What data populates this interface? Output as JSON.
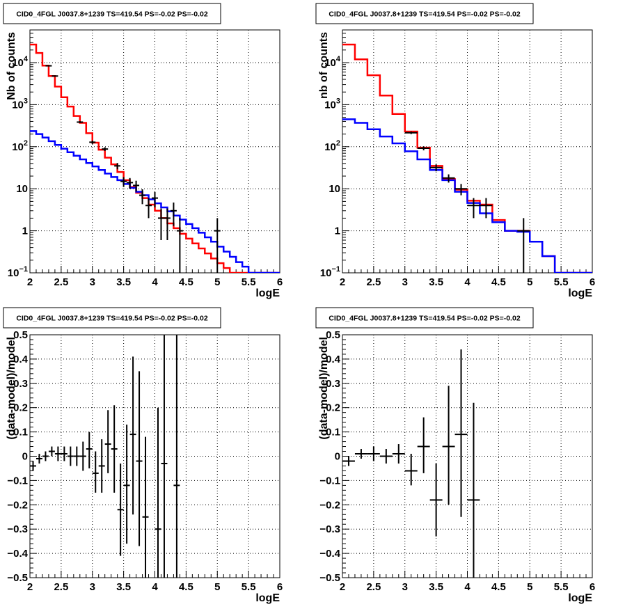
{
  "chart_data": [
    {
      "id": "tl",
      "type": "histogram",
      "title": "CID0_4FGL J0037.8+1239 TS=419.54 PS=-0.02 PS=-0.02",
      "xlabel": "logE",
      "ylabel": "Nb of counts",
      "xlim": [
        2,
        6
      ],
      "ylim": [
        0.1,
        60000
      ],
      "yscale": "log",
      "grid": true,
      "xticks": [
        "2",
        "2.5",
        "3",
        "3.5",
        "4",
        "4.5",
        "5",
        "5.5",
        "6"
      ],
      "yticks": [
        {
          "v": 0.1,
          "base": "10",
          "exp": "−1"
        },
        {
          "v": 1,
          "text": "1"
        },
        {
          "v": 10,
          "text": "10"
        },
        {
          "v": 100,
          "base": "10",
          "exp": "2"
        },
        {
          "v": 1000,
          "base": "10",
          "exp": "3"
        },
        {
          "v": 10000,
          "base": "10",
          "exp": "4"
        }
      ],
      "bin_edges": [
        2.0,
        2.1,
        2.2,
        2.3,
        2.4,
        2.5,
        2.6,
        2.7,
        2.8,
        2.9,
        3.0,
        3.1,
        3.2,
        3.3,
        3.4,
        3.5,
        3.6,
        3.7,
        3.8,
        3.9,
        4.0,
        4.1,
        4.2,
        4.3,
        4.4,
        4.5,
        4.6,
        4.7,
        4.8,
        4.9,
        5.0,
        5.1,
        5.2,
        5.3,
        5.4,
        5.5,
        5.6,
        5.7,
        5.8,
        5.9,
        6.0
      ],
      "series": [
        {
          "color": "#ff0000",
          "values": [
            27000,
            17000,
            8500,
            4800,
            2700,
            1500,
            900,
            540,
            370,
            210,
            125,
            85,
            55,
            38,
            25,
            16,
            11,
            8,
            6,
            4.2,
            3.0,
            2.0,
            1.5,
            1.15,
            0.85,
            0.65,
            0.5,
            0.38,
            0.29,
            0.22,
            0.17,
            0.13,
            0.1,
            0.1,
            0.1,
            0.1,
            0.1,
            0.1,
            0.1,
            0.1
          ]
        },
        {
          "color": "#0000ff",
          "values": [
            235,
            200,
            165,
            135,
            110,
            90,
            74,
            61,
            50,
            41,
            34,
            28,
            23,
            19,
            16,
            13,
            10.5,
            8.5,
            7,
            5.6,
            4.5,
            3.6,
            2.9,
            2.3,
            1.85,
            1.45,
            1.15,
            0.9,
            0.7,
            0.55,
            0.42,
            0.32,
            0.24,
            0.18,
            0.14,
            0.1,
            0.1,
            0.1,
            0.1,
            0.1
          ]
        }
      ],
      "points": [
        {
          "x": 2.3,
          "y": 8400,
          "ylo": 8200,
          "yhi": 8600,
          "dx": 0.05
        },
        {
          "x": 2.4,
          "y": 4800,
          "ylo": 4650,
          "yhi": 4950,
          "dx": 0.05
        },
        {
          "x": 2.8,
          "y": 385,
          "ylo": 365,
          "yhi": 405,
          "dx": 0.05
        },
        {
          "x": 3.0,
          "y": 128,
          "ylo": 116,
          "yhi": 140,
          "dx": 0.05
        },
        {
          "x": 3.2,
          "y": 88,
          "ylo": 79,
          "yhi": 97,
          "dx": 0.05
        },
        {
          "x": 3.4,
          "y": 35,
          "ylo": 29,
          "yhi": 41,
          "dx": 0.05
        },
        {
          "x": 3.5,
          "y": 15,
          "ylo": 11,
          "yhi": 19,
          "dx": 0.05
        },
        {
          "x": 3.6,
          "y": 14,
          "ylo": 10,
          "yhi": 18,
          "dx": 0.05
        },
        {
          "x": 3.7,
          "y": 12,
          "ylo": 8.5,
          "yhi": 15.5,
          "dx": 0.05
        },
        {
          "x": 3.8,
          "y": 7,
          "ylo": 4.3,
          "yhi": 9.7,
          "dx": 0.05
        },
        {
          "x": 3.9,
          "y": 4,
          "ylo": 2,
          "yhi": 6,
          "dx": 0.05
        },
        {
          "x": 4.0,
          "y": 6,
          "ylo": 3.6,
          "yhi": 8.4,
          "dx": 0.05
        },
        {
          "x": 4.1,
          "y": 2,
          "ylo": 0.6,
          "yhi": 3.4,
          "dx": 0.05
        },
        {
          "x": 4.2,
          "y": 2,
          "ylo": 0.6,
          "yhi": 3.4,
          "dx": 0.05
        },
        {
          "x": 4.3,
          "y": 3,
          "ylo": 1.3,
          "yhi": 4.7,
          "dx": 0.05
        },
        {
          "x": 4.4,
          "y": 1,
          "ylo": 0.1,
          "yhi": 2,
          "dx": 0.05
        },
        {
          "x": 5.0,
          "y": 1,
          "ylo": 0.1,
          "yhi": 2,
          "dx": 0.05
        }
      ]
    },
    {
      "id": "tr",
      "type": "histogram",
      "title": "CID0_4FGL J0037.8+1239 TS=419.54 PS=-0.02 PS=-0.02",
      "xlabel": "logE",
      "ylabel": "nb of counts",
      "xlim": [
        2,
        6
      ],
      "ylim": [
        0.1,
        60000
      ],
      "yscale": "log",
      "grid": true,
      "xticks": [
        "2",
        "2.5",
        "3",
        "3.5",
        "4",
        "4.5",
        "5",
        "5.5",
        "6"
      ],
      "yticks": [
        {
          "v": 0.1,
          "base": "10",
          "exp": "−1"
        },
        {
          "v": 1,
          "text": "1"
        },
        {
          "v": 10,
          "text": "10"
        },
        {
          "v": 100,
          "base": "10",
          "exp": "2"
        },
        {
          "v": 1000,
          "base": "10",
          "exp": "3"
        },
        {
          "v": 10000,
          "base": "10",
          "exp": "4"
        }
      ],
      "bin_edges": [
        2.0,
        2.2,
        2.4,
        2.6,
        2.8,
        3.0,
        3.2,
        3.4,
        3.6,
        3.8,
        4.0,
        4.2,
        4.4,
        4.6,
        4.8,
        5.0,
        5.2,
        5.4,
        5.6,
        5.8,
        6.0
      ],
      "series": [
        {
          "color": "#ff0000",
          "values": [
            27000,
            12000,
            5000,
            1650,
            600,
            230,
            95,
            35,
            17,
            9.5,
            5.2,
            4.2,
            1.8,
            1.0,
            1.0,
            0.55,
            0.25,
            0.1,
            0.1,
            0.1
          ]
        },
        {
          "color": "#0000ff",
          "values": [
            450,
            370,
            260,
            175,
            120,
            78,
            50,
            28,
            16,
            8.5,
            4.6,
            2.6,
            1.6,
            1.0,
            0.95,
            0.55,
            0.25,
            0.1,
            0.1,
            0.1
          ]
        }
      ],
      "points": [
        {
          "x": 3.1,
          "y": 215,
          "ylo": 200,
          "yhi": 230,
          "dx": 0.1
        },
        {
          "x": 3.3,
          "y": 92,
          "ylo": 82,
          "yhi": 102,
          "dx": 0.1
        },
        {
          "x": 3.5,
          "y": 32,
          "ylo": 26,
          "yhi": 38,
          "dx": 0.1
        },
        {
          "x": 3.7,
          "y": 18,
          "ylo": 14,
          "yhi": 22,
          "dx": 0.1
        },
        {
          "x": 3.9,
          "y": 10,
          "ylo": 7,
          "yhi": 13,
          "dx": 0.1
        },
        {
          "x": 4.1,
          "y": 4,
          "ylo": 2,
          "yhi": 6,
          "dx": 0.1
        },
        {
          "x": 4.3,
          "y": 4,
          "ylo": 2,
          "yhi": 6,
          "dx": 0.1
        },
        {
          "x": 4.9,
          "y": 1,
          "ylo": 0.1,
          "yhi": 2,
          "dx": 0.1
        }
      ]
    },
    {
      "id": "bl",
      "type": "scatter",
      "title": "CID0_4FGL J0037.8+1239 TS=419.54 PS=-0.02 PS=-0.02",
      "xlabel": "logE",
      "ylabel": "(data-model)/model",
      "xlim": [
        2,
        6
      ],
      "ylim": [
        -0.5,
        0.5
      ],
      "yscale": "linear",
      "grid": true,
      "xticks": [
        "2",
        "2.5",
        "3",
        "3.5",
        "4",
        "4.5",
        "5",
        "5.5",
        "6"
      ],
      "yticks": [
        {
          "v": -0.5,
          "text": "−0.5"
        },
        {
          "v": -0.4,
          "text": "−0.4"
        },
        {
          "v": -0.3,
          "text": "−0.3"
        },
        {
          "v": -0.2,
          "text": "−0.2"
        },
        {
          "v": -0.1,
          "text": "−0.1"
        },
        {
          "v": 0,
          "text": "0"
        },
        {
          "v": 0.1,
          "text": "0.1"
        },
        {
          "v": 0.2,
          "text": "0.2"
        },
        {
          "v": 0.3,
          "text": "0.3"
        },
        {
          "v": 0.4,
          "text": "0.4"
        },
        {
          "v": 0.5,
          "text": "0.5"
        }
      ],
      "points": [
        {
          "x": 2.05,
          "y": -0.04,
          "ylo": -0.06,
          "yhi": -0.02,
          "dx": 0.05
        },
        {
          "x": 2.15,
          "y": -0.01,
          "ylo": -0.03,
          "yhi": 0.01,
          "dx": 0.05
        },
        {
          "x": 2.25,
          "y": 0.0,
          "ylo": -0.02,
          "yhi": 0.02,
          "dx": 0.05
        },
        {
          "x": 2.35,
          "y": 0.02,
          "ylo": 0.0,
          "yhi": 0.04,
          "dx": 0.05
        },
        {
          "x": 2.45,
          "y": 0.01,
          "ylo": -0.02,
          "yhi": 0.04,
          "dx": 0.05
        },
        {
          "x": 2.55,
          "y": 0.01,
          "ylo": -0.02,
          "yhi": 0.04,
          "dx": 0.05
        },
        {
          "x": 2.65,
          "y": 0.0,
          "ylo": -0.04,
          "yhi": 0.04,
          "dx": 0.05
        },
        {
          "x": 2.75,
          "y": 0.0,
          "ylo": -0.04,
          "yhi": 0.04,
          "dx": 0.05
        },
        {
          "x": 2.85,
          "y": 0.0,
          "ylo": -0.06,
          "yhi": 0.06,
          "dx": 0.05
        },
        {
          "x": 2.95,
          "y": 0.03,
          "ylo": -0.05,
          "yhi": 0.1,
          "dx": 0.05
        },
        {
          "x": 3.05,
          "y": -0.07,
          "ylo": -0.15,
          "yhi": 0.02,
          "dx": 0.05
        },
        {
          "x": 3.15,
          "y": -0.04,
          "ylo": -0.15,
          "yhi": 0.07,
          "dx": 0.05
        },
        {
          "x": 3.25,
          "y": 0.05,
          "ylo": -0.07,
          "yhi": 0.19,
          "dx": 0.05
        },
        {
          "x": 3.35,
          "y": 0.03,
          "ylo": -0.15,
          "yhi": 0.21,
          "dx": 0.05
        },
        {
          "x": 3.45,
          "y": -0.22,
          "ylo": -0.41,
          "yhi": -0.03,
          "dx": 0.05
        },
        {
          "x": 3.55,
          "y": -0.12,
          "ylo": -0.36,
          "yhi": 0.13,
          "dx": 0.05
        },
        {
          "x": 3.65,
          "y": 0.09,
          "ylo": -0.24,
          "yhi": 0.41,
          "dx": 0.05
        },
        {
          "x": 3.75,
          "y": -0.02,
          "ylo": -0.37,
          "yhi": 0.35,
          "dx": 0.05
        },
        {
          "x": 3.85,
          "y": -0.25,
          "ylo": -0.5,
          "yhi": 0.08,
          "dx": 0.05
        },
        {
          "x": 4.05,
          "y": -0.3,
          "ylo": -0.5,
          "yhi": 0.2,
          "dx": 0.05
        },
        {
          "x": 4.15,
          "y": -0.03,
          "ylo": -0.5,
          "yhi": 0.5,
          "dx": 0.05
        },
        {
          "x": 4.35,
          "y": -0.12,
          "ylo": -0.5,
          "yhi": 0.5,
          "dx": 0.05
        }
      ]
    },
    {
      "id": "br",
      "type": "scatter",
      "title": "CID0_4FGL J0037.8+1239 TS=419.54 PS=-0.02 PS=-0.02",
      "xlabel": "logE",
      "ylabel": "(data-model)/model",
      "xlim": [
        2,
        6
      ],
      "ylim": [
        -0.5,
        0.5
      ],
      "yscale": "linear",
      "grid": true,
      "xticks": [
        "2",
        "2.5",
        "3",
        "3.5",
        "4",
        "4.5",
        "5",
        "5.5",
        "6"
      ],
      "yticks": [
        {
          "v": -0.5,
          "text": "−0.5"
        },
        {
          "v": -0.4,
          "text": "−0.4"
        },
        {
          "v": -0.3,
          "text": "−0.3"
        },
        {
          "v": -0.2,
          "text": "−0.2"
        },
        {
          "v": -0.1,
          "text": "−0.1"
        },
        {
          "v": 0,
          "text": "0"
        },
        {
          "v": 0.1,
          "text": "0.1"
        },
        {
          "v": 0.2,
          "text": "0.2"
        },
        {
          "v": 0.3,
          "text": "0.3"
        },
        {
          "v": 0.4,
          "text": "0.4"
        },
        {
          "v": 0.5,
          "text": "0.5"
        }
      ],
      "points": [
        {
          "x": 2.1,
          "y": -0.02,
          "ylo": -0.04,
          "yhi": 0.0,
          "dx": 0.1
        },
        {
          "x": 2.3,
          "y": 0.01,
          "ylo": -0.01,
          "yhi": 0.03,
          "dx": 0.1
        },
        {
          "x": 2.5,
          "y": 0.01,
          "ylo": -0.02,
          "yhi": 0.04,
          "dx": 0.1
        },
        {
          "x": 2.7,
          "y": 0.0,
          "ylo": -0.03,
          "yhi": 0.03,
          "dx": 0.1
        },
        {
          "x": 2.9,
          "y": 0.01,
          "ylo": -0.03,
          "yhi": 0.05,
          "dx": 0.1
        },
        {
          "x": 3.1,
          "y": -0.06,
          "ylo": -0.12,
          "yhi": 0.01,
          "dx": 0.1
        },
        {
          "x": 3.3,
          "y": 0.04,
          "ylo": -0.07,
          "yhi": 0.16,
          "dx": 0.1
        },
        {
          "x": 3.5,
          "y": -0.18,
          "ylo": -0.33,
          "yhi": -0.03,
          "dx": 0.1
        },
        {
          "x": 3.7,
          "y": 0.04,
          "ylo": -0.2,
          "yhi": 0.29,
          "dx": 0.1
        },
        {
          "x": 3.9,
          "y": 0.09,
          "ylo": -0.25,
          "yhi": 0.44,
          "dx": 0.1
        },
        {
          "x": 4.1,
          "y": -0.18,
          "ylo": -0.5,
          "yhi": 0.22,
          "dx": 0.1
        }
      ]
    }
  ]
}
